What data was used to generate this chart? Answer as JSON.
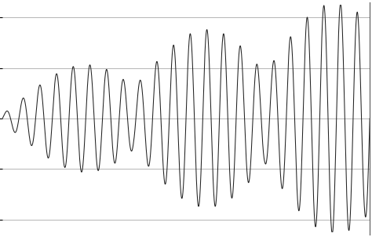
{
  "title": "",
  "xlabel": "",
  "ylabel": "",
  "xlim": [
    0,
    1
  ],
  "ylim": [
    -1.15,
    1.15
  ],
  "line_color": "#222222",
  "line_width": 0.75,
  "background_color": "#ffffff",
  "grid_color": "#aaaaaa",
  "grid_linewidth": 0.6,
  "n_points": 8000,
  "carrier_freq": 22.0,
  "mod_freq": 2.8,
  "amp_growth_exp": 0.55,
  "amp_max": 1.05,
  "amp_min": 0.04,
  "grid_yticks": [
    -1.0,
    -0.5,
    0.0,
    0.5,
    1.0
  ]
}
